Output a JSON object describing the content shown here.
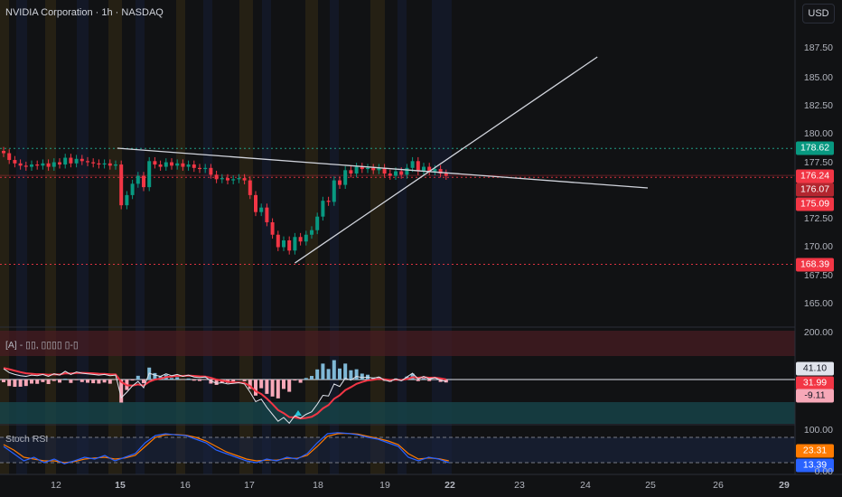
{
  "header": {
    "title": "NVIDIA Corporation · 1h · NASDAQ",
    "currency": "USD"
  },
  "price_axis": [
    "187.50",
    "185.00",
    "182.50",
    "180.00",
    "177.50",
    "172.50",
    "170.00",
    "167.50",
    "165.00"
  ],
  "price_tags": [
    {
      "label": "178.62",
      "color": "#089981"
    },
    {
      "label": "176.24",
      "color": "#f23645"
    },
    {
      "label": "176.07",
      "color": "#b2262f"
    },
    {
      "label": "175.09",
      "color": "#f23645"
    },
    {
      "label": "168.39",
      "color": "#f23645"
    }
  ],
  "macd": {
    "label": "[A] - ▯▯, ▯▯▯▯ ▯-▯",
    "axis": "200.00",
    "tags": [
      {
        "label": "41.10",
        "color": "#e0e3eb",
        "text": "#131722"
      },
      {
        "label": "31.99",
        "color": "#f23645",
        "text": "#ffffff"
      },
      {
        "label": "-9.11",
        "color": "#f7a8b8",
        "text": "#131722"
      }
    ]
  },
  "stoch": {
    "label": "Stoch RSI",
    "axis_top": "100.00",
    "axis_bottom": "0.00",
    "tags": [
      {
        "label": "23.31",
        "color": "#ff7b00"
      },
      {
        "label": "13.39",
        "color": "#2962ff"
      }
    ]
  },
  "x_axis": [
    "12",
    "15",
    "16",
    "17",
    "18",
    "19",
    "22",
    "23",
    "24",
    "25",
    "26",
    "29"
  ],
  "chart_data": {
    "type": "candlestick",
    "title": "NVIDIA Corporation · 1h · NASDAQ",
    "ylim": [
      165,
      187.5
    ],
    "closes": [
      178.2,
      177.6,
      177.3,
      177.1,
      177.0,
      177.2,
      177.1,
      177.3,
      177.0,
      177.4,
      177.2,
      177.8,
      177.3,
      177.7,
      177.5,
      177.4,
      177.3,
      177.2,
      177.3,
      177.1,
      177.2,
      173.6,
      174.5,
      175.5,
      176.2,
      175.2,
      177.5,
      177.2,
      177.0,
      177.4,
      177.1,
      177.3,
      177.0,
      177.2,
      176.9,
      176.8,
      176.9,
      176.3,
      175.9,
      176.0,
      175.8,
      175.9,
      176.0,
      175.8,
      174.5,
      173.0,
      173.4,
      172.1,
      171.0,
      169.9,
      170.5,
      169.6,
      170.8,
      170.4,
      171.0,
      171.4,
      172.6,
      174.0,
      173.9,
      175.8,
      175.4,
      176.7,
      176.4,
      177.0,
      176.8,
      176.9,
      176.7,
      176.9,
      176.4,
      176.2,
      176.6,
      176.3,
      176.9,
      177.5,
      176.6,
      177.0,
      176.6,
      176.8,
      176.4,
      176.2
    ],
    "levels": [
      {
        "price": 178.62,
        "style": "green-dotted"
      },
      {
        "price": 176.07,
        "style": "red-dotted"
      },
      {
        "price": 168.39,
        "style": "red-dotted"
      },
      {
        "price": 176.24,
        "style": "red-faint"
      }
    ],
    "trendlines": [
      {
        "from": [
          20.3,
          178.64
        ],
        "to": [
          115,
          175.13
        ]
      },
      {
        "from": [
          52,
          168.5
        ],
        "to": [
          106,
          186.7
        ]
      }
    ],
    "stoch_k": [
      60,
      40,
      20,
      30,
      15,
      25,
      12,
      20,
      30,
      25,
      35,
      20,
      30,
      40,
      70,
      90,
      95,
      92,
      90,
      80,
      70,
      50,
      40,
      30,
      20,
      15,
      25,
      20,
      30,
      25,
      40,
      70,
      95,
      98,
      96,
      92,
      85,
      80,
      70,
      60,
      30,
      20,
      30,
      25,
      15
    ],
    "stoch_d": [
      65,
      50,
      30,
      25,
      20,
      20,
      15,
      18,
      25,
      28,
      30,
      25,
      28,
      35,
      60,
      85,
      92,
      93,
      91,
      85,
      75,
      60,
      45,
      35,
      25,
      20,
      22,
      22,
      27,
      27,
      35,
      60,
      88,
      95,
      96,
      94,
      88,
      82,
      75,
      65,
      40,
      25,
      28,
      26,
      20
    ]
  }
}
